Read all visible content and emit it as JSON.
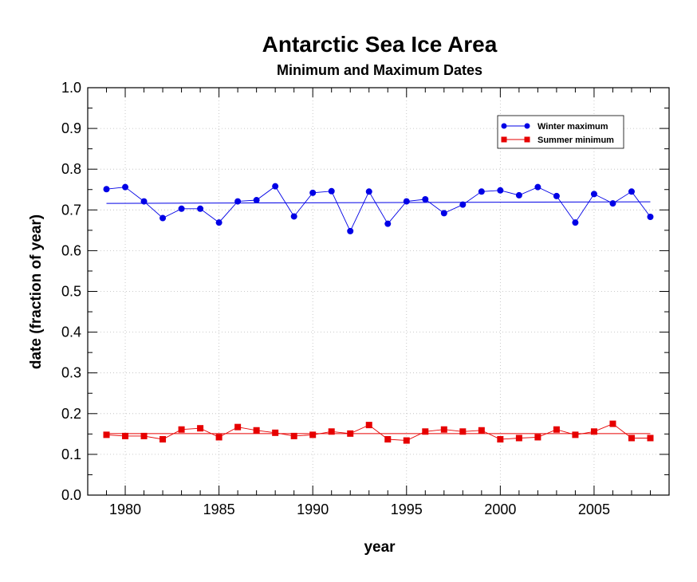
{
  "chart_data": {
    "type": "line",
    "title": "Antarctic Sea Ice Area",
    "subtitle": "Minimum and Maximum Dates",
    "xlabel": "year",
    "ylabel": "date (fraction of year)",
    "xlim": [
      1978,
      2009
    ],
    "ylim": [
      0.0,
      1.0
    ],
    "x_ticks": [
      1980,
      1985,
      1990,
      1995,
      2000,
      2005
    ],
    "y_ticks": [
      "0.0",
      "0.1",
      "0.2",
      "0.3",
      "0.4",
      "0.5",
      "0.6",
      "0.7",
      "0.8",
      "0.9",
      "1.0"
    ],
    "grid": true,
    "legend_position": "top-right",
    "x": [
      1979,
      1980,
      1981,
      1982,
      1983,
      1984,
      1985,
      1986,
      1987,
      1988,
      1989,
      1990,
      1991,
      1992,
      1993,
      1994,
      1995,
      1996,
      1997,
      1998,
      1999,
      2000,
      2001,
      2002,
      2003,
      2004,
      2005,
      2006,
      2007,
      2008
    ],
    "series": [
      {
        "name": "Winter maximum",
        "color": "#0000e6",
        "marker": "circle",
        "values": [
          0.751,
          0.756,
          0.721,
          0.68,
          0.703,
          0.703,
          0.669,
          0.721,
          0.724,
          0.758,
          0.684,
          0.742,
          0.746,
          0.648,
          0.745,
          0.666,
          0.721,
          0.726,
          0.692,
          0.713,
          0.745,
          0.748,
          0.736,
          0.756,
          0.734,
          0.669,
          0.739,
          0.716,
          0.745,
          0.683
        ],
        "trend": [
          0.716,
          0.72
        ]
      },
      {
        "name": "Summer minimum",
        "color": "#e60000",
        "marker": "square",
        "values": [
          0.148,
          0.145,
          0.145,
          0.137,
          0.161,
          0.164,
          0.142,
          0.167,
          0.159,
          0.153,
          0.145,
          0.148,
          0.156,
          0.151,
          0.172,
          0.137,
          0.134,
          0.156,
          0.161,
          0.156,
          0.159,
          0.137,
          0.14,
          0.142,
          0.161,
          0.148,
          0.156,
          0.175,
          0.14,
          0.14
        ],
        "trend": [
          0.151,
          0.151
        ]
      }
    ]
  }
}
